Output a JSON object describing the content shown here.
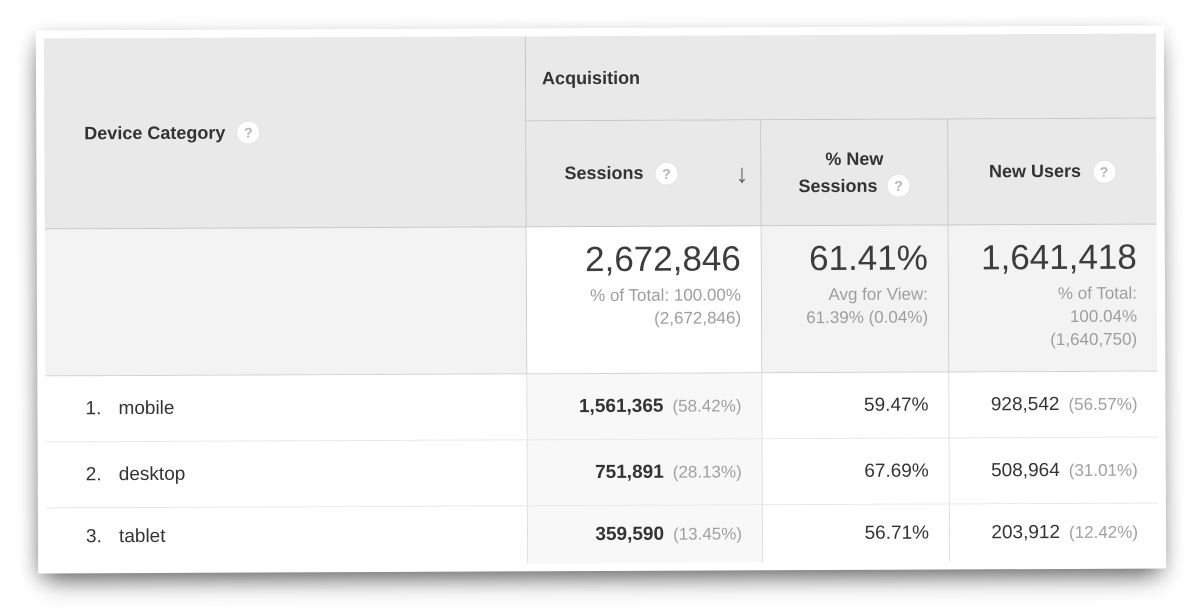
{
  "table": {
    "header": {
      "dimension_label": "Device Category",
      "group_label": "Acquisition",
      "sessions_label": "Sessions",
      "new_sessions_label_line1": "% New",
      "new_sessions_label_line2": "Sessions",
      "new_users_label": "New Users"
    },
    "icons": {
      "help": "?",
      "sort_desc": "↓"
    },
    "summary": {
      "sessions_value": "2,672,846",
      "sessions_sub_line1": "% of Total: 100.00%",
      "sessions_sub_line2": "(2,672,846)",
      "new_sessions_value": "61.41%",
      "new_sessions_sub_line1": "Avg for View:",
      "new_sessions_sub_line2": "61.39% (0.04%)",
      "new_users_value": "1,641,418",
      "new_users_sub_line1": "% of Total:",
      "new_users_sub_line2": "100.04%",
      "new_users_sub_line3": "(1,640,750)"
    },
    "rows": [
      {
        "rank": "1.",
        "device": "mobile",
        "sessions": "1,561,365",
        "sessions_share": "(58.42%)",
        "pct_new_sessions": "59.47%",
        "new_users": "928,542",
        "new_users_share": "(56.57%)"
      },
      {
        "rank": "2.",
        "device": "desktop",
        "sessions": "751,891",
        "sessions_share": "(28.13%)",
        "pct_new_sessions": "67.69%",
        "new_users": "508,964",
        "new_users_share": "(31.01%)"
      },
      {
        "rank": "3.",
        "device": "tablet",
        "sessions": "359,590",
        "sessions_share": "(13.45%)",
        "pct_new_sessions": "56.71%",
        "new_users": "203,912",
        "new_users_share": "(12.42%)"
      }
    ],
    "colors": {
      "header_bg": "#e9e9e9",
      "summary_bg": "#f3f3f3",
      "sorted_column_bg": "#f8f8f8",
      "border_strong": "#c6c6c6",
      "border_light": "#e7e7e7",
      "text_dark": "#333333",
      "text_gray": "#9e9e9e"
    }
  }
}
